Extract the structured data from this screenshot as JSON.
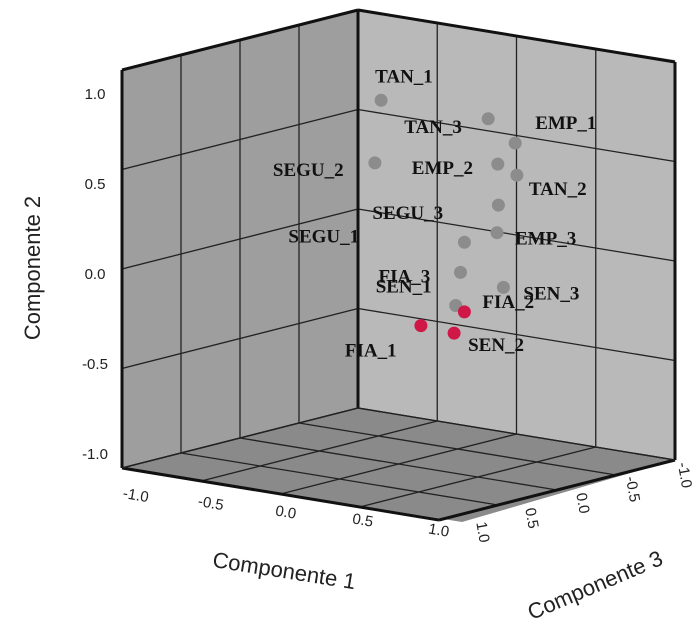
{
  "chart_data": {
    "type": "scatter",
    "dimensions": 3,
    "xlabel": "Componente 1",
    "ylabel": "Componente 2",
    "zlabel": "Componente 3",
    "xticks": [
      "-1.0",
      "-0.5",
      "0.0",
      "0.5",
      "1.0"
    ],
    "yticks": [
      "-1.0",
      "-0.5",
      "0.0",
      "0.5",
      "1.0"
    ],
    "zticks": [
      "1.0",
      "0.5",
      "0.0",
      "-0.5",
      "-1.0"
    ],
    "xlim": [
      -1,
      1
    ],
    "ylim": [
      -1,
      1
    ],
    "zlim": [
      -1,
      1
    ],
    "grid": true,
    "colors": {
      "default": "#8c8c8c",
      "highlight": "#d01848"
    },
    "points": [
      {
        "label": "TAN_1",
        "x": 0.86,
        "y": 0.6,
        "z": 0.75,
        "highlight": false
      },
      {
        "label": "TAN_3",
        "x": 0.76,
        "y": 0.62,
        "z": 0.0,
        "highlight": false
      },
      {
        "label": "EMP_1",
        "x": 0.72,
        "y": 0.53,
        "z": -0.2,
        "highlight": false
      },
      {
        "label": "EMP_2",
        "x": 0.68,
        "y": 0.42,
        "z": -0.12,
        "highlight": false
      },
      {
        "label": "TAN_2",
        "x": 0.6,
        "y": 0.4,
        "z": -0.3,
        "highlight": false
      },
      {
        "label": "SEGU_2",
        "x": 0.74,
        "y": 0.31,
        "z": 0.7,
        "highlight": false
      },
      {
        "label": "SEGU_3",
        "x": 0.82,
        "y": 0.18,
        "z": -0.02,
        "highlight": false
      },
      {
        "label": "EMP_3",
        "x": 0.7,
        "y": 0.07,
        "z": -0.1,
        "highlight": false
      },
      {
        "label": "SEGU_1",
        "x": 0.8,
        "y": -0.03,
        "z": 0.18,
        "highlight": false
      },
      {
        "label": "FIA_3",
        "x": 0.66,
        "y": -0.15,
        "z": 0.1,
        "highlight": false
      },
      {
        "label": "SEN_3",
        "x": 0.62,
        "y": -0.18,
        "z": -0.2,
        "highlight": false
      },
      {
        "label": "SEN_1",
        "x": 0.78,
        "y": -0.35,
        "z": 0.22,
        "highlight": false
      },
      {
        "label": "FIA_2",
        "x": 0.76,
        "y": -0.37,
        "z": 0.15,
        "highlight": true
      },
      {
        "label": "FIA_1",
        "x": 0.66,
        "y": -0.45,
        "z": 0.35,
        "highlight": true
      },
      {
        "label": "SEN_2",
        "x": 0.74,
        "y": -0.48,
        "z": 0.2,
        "highlight": true
      }
    ]
  }
}
